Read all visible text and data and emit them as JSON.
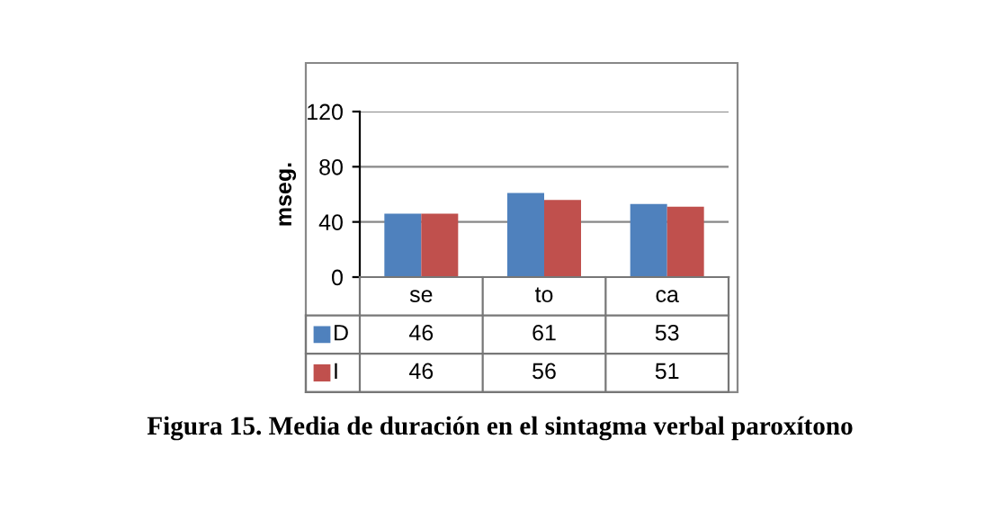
{
  "chart_data": {
    "type": "bar",
    "title": "Figura 15. Media de duración en el sintagma verbal paroxítono",
    "ylabel": "mseg.",
    "categories": [
      "se",
      "to",
      "ca"
    ],
    "series": [
      {
        "name": "D",
        "color": "#4f81bd",
        "values": [
          46,
          61,
          53
        ]
      },
      {
        "name": "I",
        "color": "#c0504d",
        "values": [
          46,
          56,
          51
        ]
      }
    ],
    "ylim": [
      0,
      120
    ],
    "yticks": [
      0,
      40,
      80,
      120
    ],
    "grid": "y",
    "legend": "bottom",
    "data_labels": true
  }
}
